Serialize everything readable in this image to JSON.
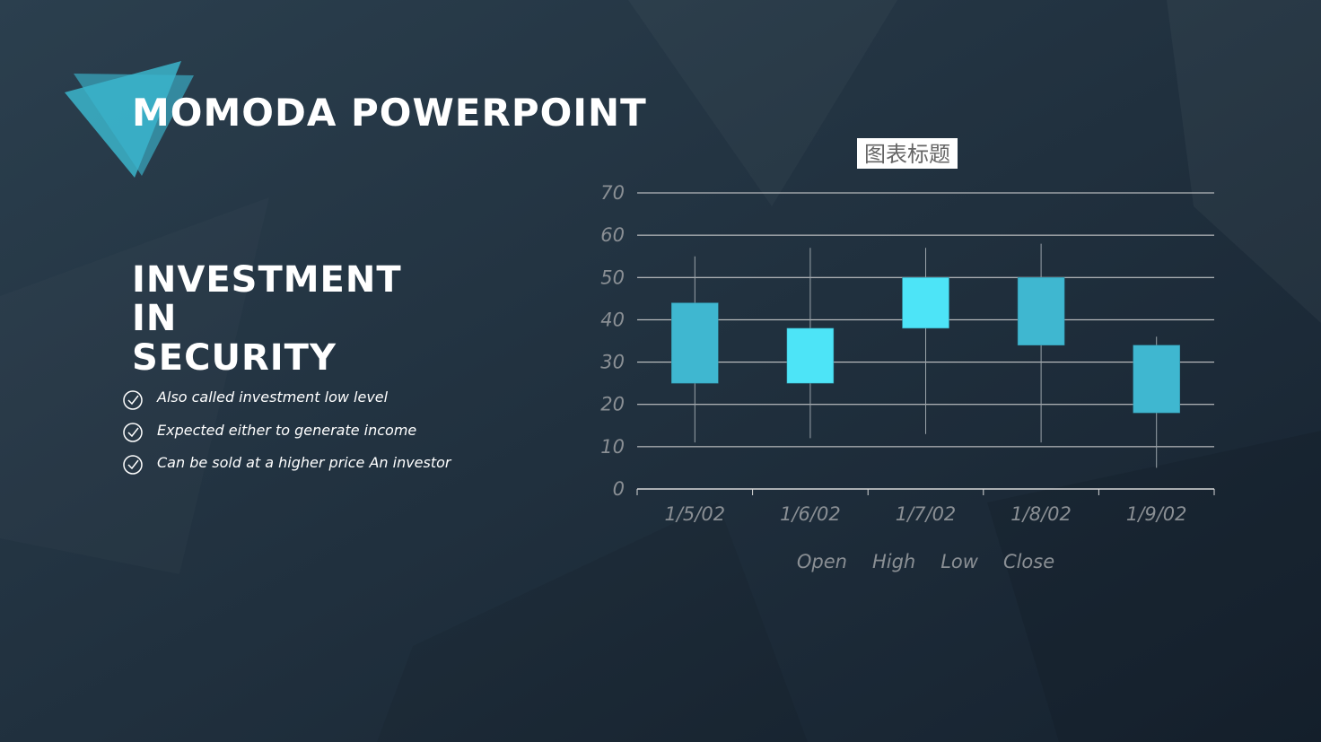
{
  "slide": {
    "title": "MOMODA POWERPOINT",
    "heading": [
      "INVESTMENT",
      "IN",
      "SECURITY"
    ],
    "bullets": [
      "Also called investment low level",
      "Expected either to generate income",
      "Can be sold at a higher price An investor"
    ]
  },
  "chart_data": {
    "type": "candlestick",
    "title": "图表标题",
    "categories": [
      "1/5/02",
      "1/6/02",
      "1/7/02",
      "1/8/02",
      "1/9/02"
    ],
    "series": [
      {
        "name": "Open",
        "values": [
          44,
          25,
          38,
          50,
          34
        ]
      },
      {
        "name": "High",
        "values": [
          55,
          57,
          57,
          58,
          36
        ]
      },
      {
        "name": "Low",
        "values": [
          11,
          12,
          13,
          11,
          5
        ]
      },
      {
        "name": "Close",
        "values": [
          25,
          38,
          50,
          34,
          18
        ]
      }
    ],
    "up_color": "#4de4f7",
    "down_color": "#3fb7d0",
    "ylim": [
      0,
      70
    ],
    "yticks": [
      0,
      10,
      20,
      30,
      40,
      50,
      60,
      70
    ],
    "grid": true,
    "legend": "bottom"
  }
}
